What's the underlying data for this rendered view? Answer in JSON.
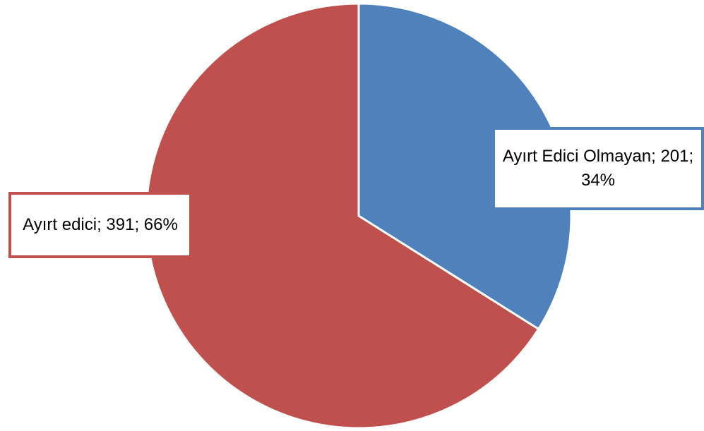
{
  "chart_data": {
    "type": "pie",
    "values": [
      201,
      391
    ],
    "value_labels": [
      "Ayırt Edici Olmayan; 201; 34%",
      "Ayırt edici; 391; 66%"
    ],
    "colors": [
      "#4f81bd",
      "#c0504d"
    ]
  }
}
